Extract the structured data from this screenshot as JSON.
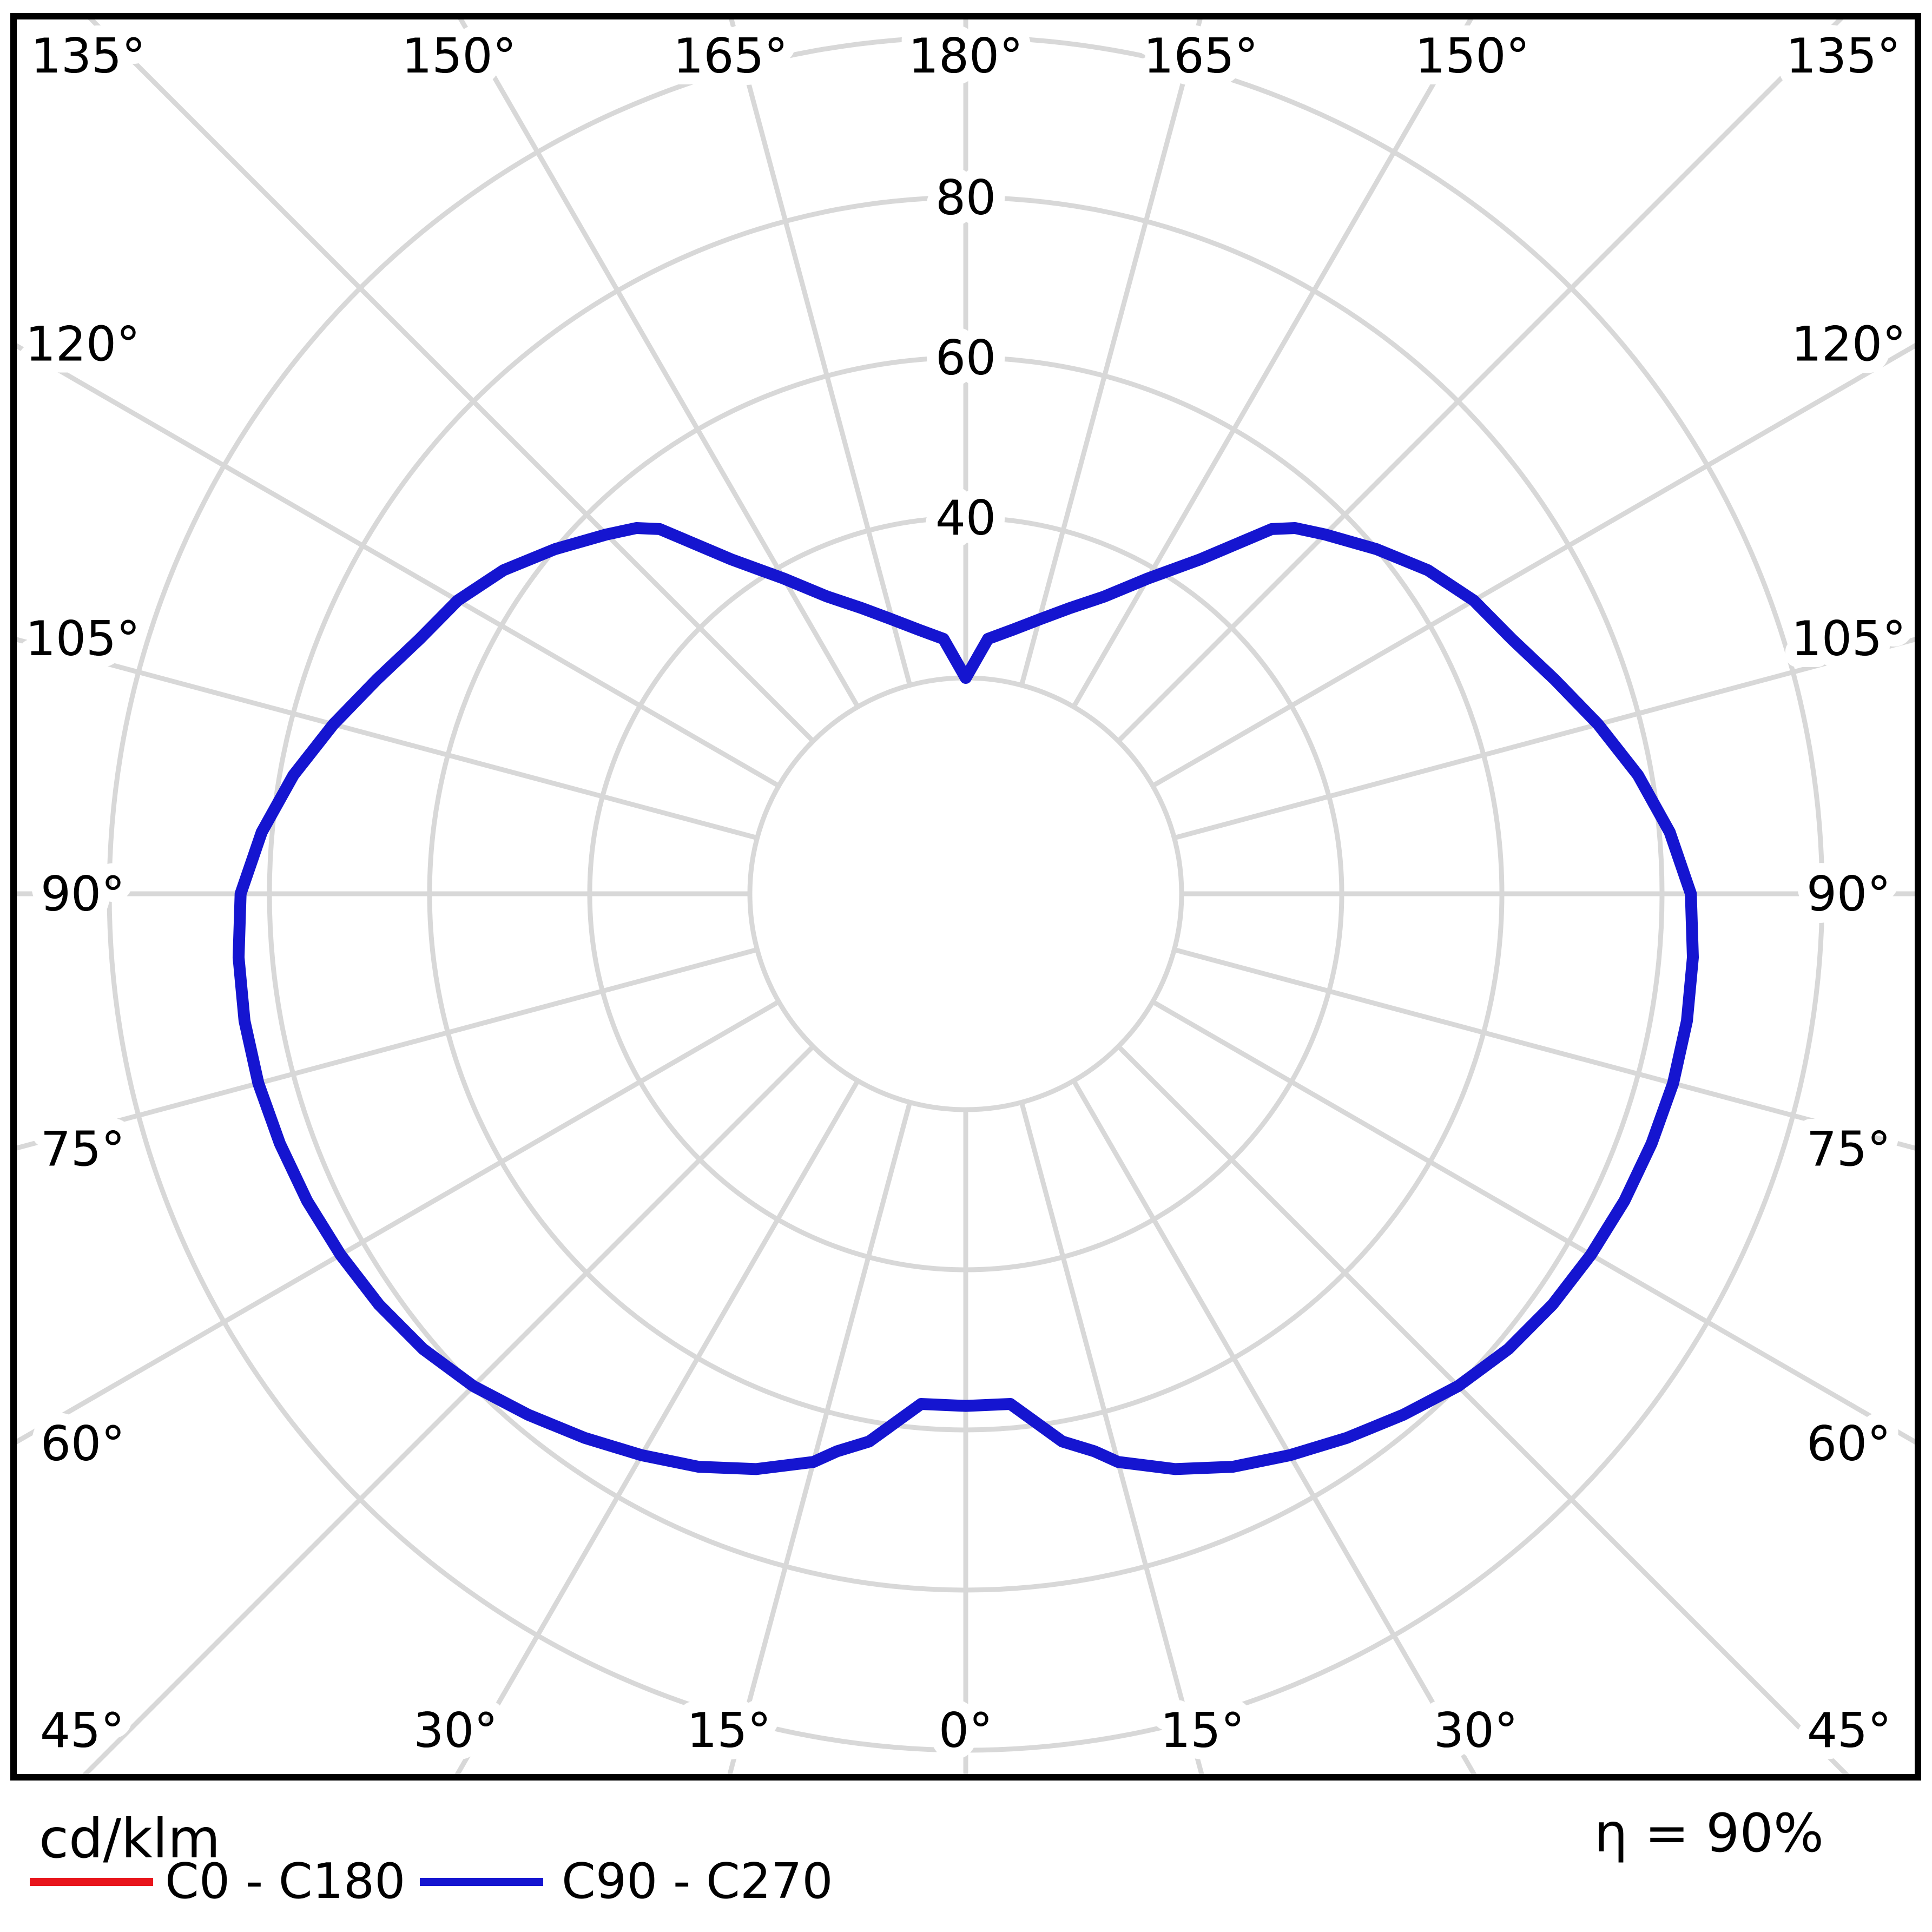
{
  "footer": {
    "units": "cd/klm",
    "efficiency": "η = 90%"
  },
  "legend": {
    "items": [
      {
        "label": "C0 - C180",
        "color": "#e8151c"
      },
      {
        "label": "C90 - C270",
        "color": "#1515d0"
      }
    ]
  },
  "chart_data": {
    "type": "polar",
    "subtype": "photometric-luminous-intensity-distribution",
    "units": "cd/klm",
    "efficiency": "η = 90%",
    "grid": {
      "color": "#d8d8d8",
      "frame_color": "#000000",
      "spoke_step_deg": 15,
      "ring_values": [
        20,
        40,
        60,
        80,
        100
      ],
      "ring_labels": [
        "40",
        "60",
        "80"
      ],
      "orientation": "0° at bottom (nadir), 90° at sides, 180° at top"
    },
    "axis_labels": {
      "top": [
        "135°",
        "150°",
        "165°",
        "180°",
        "165°",
        "150°",
        "135°"
      ],
      "left": [
        "120°",
        "105°",
        "90°",
        "75°",
        "60°"
      ],
      "right": [
        "120°",
        "105°",
        "90°",
        "75°",
        "60°"
      ],
      "bottom": [
        "45°",
        "30°",
        "15°",
        "0°",
        "15°",
        "30°",
        "45°"
      ]
    },
    "series": [
      {
        "name": "C0 - C180",
        "color": "#e8151c",
        "note": "coincides with C90 - C270 curve; hidden beneath it"
      },
      {
        "name": "C90 - C270",
        "color": "#1515d0",
        "note": "drawn mirror-symmetric about the vertical axis"
      }
    ],
    "profile_gamma_deg_vs_cd_per_klm": [
      [
        0,
        57
      ],
      [
        5,
        57
      ],
      [
        10,
        62.5
      ],
      [
        13,
        64.5
      ],
      [
        15,
        66.5
      ],
      [
        20,
        69.5
      ],
      [
        25,
        72
      ],
      [
        30,
        74
      ],
      [
        35,
        76
      ],
      [
        40,
        78
      ],
      [
        45,
        80
      ],
      [
        50,
        81.5
      ],
      [
        55,
        82.5
      ],
      [
        60,
        83.2
      ],
      [
        65,
        83.8
      ],
      [
        70,
        84.2
      ],
      [
        75,
        84.5
      ],
      [
        80,
        84.5
      ],
      [
        85,
        84.2
      ],
      [
        90,
        83.6
      ],
      [
        95,
        81.3
      ],
      [
        100,
        78.3
      ],
      [
        105,
        74.8
      ],
      [
        110,
        71.3
      ],
      [
        115,
        68.3
      ],
      [
        120,
        66.3
      ],
      [
        125,
        63.5
      ],
      [
        130,
        60
      ],
      [
        135,
        56.5
      ],
      [
        138,
        54.5
      ],
      [
        140,
        52.5
      ],
      [
        145,
        44
      ],
      [
        150,
        38.5
      ],
      [
        155,
        34
      ],
      [
        160,
        31
      ],
      [
        165,
        28.5
      ],
      [
        170,
        26.5
      ],
      [
        175,
        25
      ],
      [
        180,
        20
      ]
    ]
  }
}
